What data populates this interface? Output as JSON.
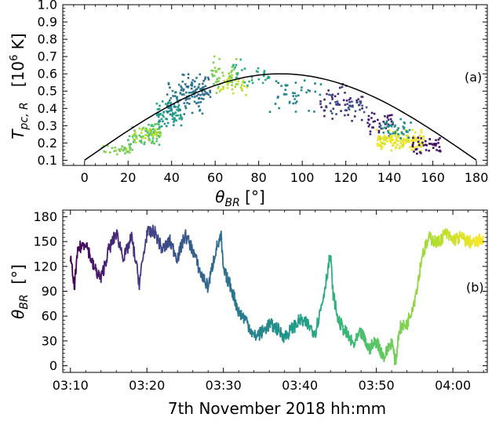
{
  "chart_data": [
    {
      "type": "scatter",
      "panel_label": "(a)",
      "ylabel_main": "T",
      "ylabel_sub": "pc, R",
      "ylabel_unit_pre": "[10",
      "ylabel_unit_sup": "6",
      "ylabel_unit_post": " K]",
      "xlabel_main": "θ",
      "xlabel_sub": "BR",
      "xlabel_unit": " [°]",
      "xlim": [
        -10,
        185
      ],
      "ylim": [
        0.07,
        1.0
      ],
      "xticks": [
        0,
        20,
        40,
        60,
        80,
        100,
        120,
        140,
        160,
        180
      ],
      "yticks": [
        0.1,
        0.2,
        0.3,
        0.4,
        0.5,
        0.6,
        0.7,
        0.8,
        0.9,
        1.0
      ],
      "curve": {
        "type": "sine",
        "baseline": 0.1,
        "amplitude": 0.5,
        "x": [
          0,
          180
        ]
      },
      "scatter_colored_by": "time",
      "clusters": [
        {
          "x": [
            8,
            22
          ],
          "y": [
            0.13,
            0.2
          ],
          "color_t": 0.8,
          "n": 35
        },
        {
          "x": [
            20,
            35
          ],
          "y": [
            0.18,
            0.32
          ],
          "color_t": 0.72,
          "n": 70
        },
        {
          "x": [
            22,
            35
          ],
          "y": [
            0.2,
            0.3
          ],
          "color_t": 0.88,
          "n": 35
        },
        {
          "x": [
            33,
            45
          ],
          "y": [
            0.28,
            0.45
          ],
          "color_t": 0.55,
          "n": 70
        },
        {
          "x": [
            38,
            55
          ],
          "y": [
            0.35,
            0.58
          ],
          "color_t": 0.4,
          "n": 80
        },
        {
          "x": [
            45,
            58
          ],
          "y": [
            0.42,
            0.62
          ],
          "color_t": 0.35,
          "n": 50
        },
        {
          "x": [
            58,
            70
          ],
          "y": [
            0.48,
            0.72
          ],
          "color_t": 0.8,
          "n": 45
        },
        {
          "x": [
            60,
            75
          ],
          "y": [
            0.45,
            0.6
          ],
          "color_t": 0.9,
          "n": 30
        },
        {
          "x": [
            68,
            85
          ],
          "y": [
            0.48,
            0.7
          ],
          "color_t": 0.6,
          "n": 30
        },
        {
          "x": [
            85,
            110
          ],
          "y": [
            0.35,
            0.6
          ],
          "color_t": 0.45,
          "n": 40
        },
        {
          "x": [
            108,
            128
          ],
          "y": [
            0.32,
            0.55
          ],
          "color_t": 0.12,
          "n": 45
        },
        {
          "x": [
            112,
            130
          ],
          "y": [
            0.35,
            0.5
          ],
          "color_t": 0.25,
          "n": 30
        },
        {
          "x": [
            130,
            142
          ],
          "y": [
            0.2,
            0.4
          ],
          "color_t": 0.08,
          "n": 40
        },
        {
          "x": [
            134,
            156
          ],
          "y": [
            0.15,
            0.28
          ],
          "color_t": 0.97,
          "n": 140
        },
        {
          "x": [
            136,
            150
          ],
          "y": [
            0.22,
            0.35
          ],
          "color_t": 0.5,
          "n": 40
        },
        {
          "x": [
            150,
            164
          ],
          "y": [
            0.13,
            0.25
          ],
          "color_t": 0.05,
          "n": 40
        }
      ]
    },
    {
      "type": "line",
      "panel_label": "(b)",
      "ylabel_main": "θ",
      "ylabel_sub": "BR",
      "ylabel_unit": "[°]",
      "xlabel": "7th November 2018 hh:mm",
      "xlim_min": [
        9.0,
        64.5
      ],
      "ylim": [
        -8,
        188
      ],
      "xtick_minutes": [
        10,
        20,
        30,
        40,
        50,
        60
      ],
      "xtick_labels": [
        "03:10",
        "03:20",
        "03:30",
        "03:40",
        "03:50",
        "04:00"
      ],
      "yticks": [
        0,
        30,
        60,
        90,
        120,
        150,
        180
      ],
      "colored_by": "time",
      "x_minutes": [
        10.0,
        10.5,
        11.0,
        12.0,
        13.0,
        14.0,
        15.0,
        16.0,
        17.0,
        18.0,
        19.0,
        20.0,
        21.0,
        22.0,
        23.0,
        24.0,
        25.0,
        26.0,
        27.0,
        28.0,
        29.0,
        29.7,
        30.0,
        31.0,
        32.0,
        33.0,
        34.0,
        35.0,
        36.0,
        37.0,
        38.0,
        39.0,
        40.0,
        41.0,
        42.0,
        43.0,
        44.0,
        44.3,
        45.0,
        46.0,
        47.0,
        48.0,
        49.0,
        50.0,
        51.0,
        52.0,
        52.5,
        53.0,
        54.0,
        55.0,
        55.5,
        56.0,
        57.0,
        58.0,
        59.0,
        60.0,
        61.0,
        62.0,
        63.0,
        64.0
      ],
      "y_degrees": [
        130,
        95,
        140,
        150,
        120,
        105,
        140,
        160,
        130,
        155,
        100,
        160,
        162,
        140,
        150,
        130,
        158,
        140,
        112,
        95,
        140,
        155,
        115,
        95,
        65,
        55,
        35,
        40,
        50,
        45,
        35,
        45,
        55,
        50,
        40,
        80,
        135,
        90,
        55,
        40,
        25,
        40,
        20,
        30,
        10,
        30,
        3,
        45,
        50,
        80,
        105,
        135,
        155,
        148,
        160,
        152,
        155,
        150,
        148,
        155
      ]
    }
  ]
}
